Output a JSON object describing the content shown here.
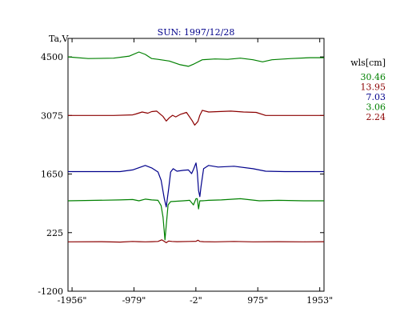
{
  "chart_data": {
    "type": "line",
    "title": "SUN: 1997/12/28",
    "ylabel": "Ta,V",
    "legend_title": "wls[cm]",
    "legend_placement": "right",
    "x_ticks": [
      "-1956\"",
      "-979\"",
      "-2\"",
      "975\"",
      "1953\""
    ],
    "x_tick_values": [
      -1956,
      -979,
      -2,
      975,
      1953
    ],
    "y_ticks": [
      "4500",
      "3075",
      "1650",
      "225",
      "-1200"
    ],
    "y_tick_values": [
      4500,
      3075,
      1650,
      225,
      -1200
    ],
    "xlim": [
      -2020,
      2020
    ],
    "ylim": [
      -1200,
      4950
    ],
    "grid": false,
    "series": [
      {
        "name": "30.46",
        "color": "#008000",
        "x": [
          -2020,
          -1700,
          -1300,
          -1050,
          -900,
          -800,
          -700,
          -600,
          -420,
          -250,
          -120,
          -30,
          100,
          300,
          500,
          700,
          900,
          1050,
          1200,
          1500,
          1800,
          2020
        ],
        "y": [
          4500,
          4460,
          4470,
          4520,
          4620,
          4560,
          4460,
          4440,
          4400,
          4310,
          4270,
          4330,
          4430,
          4450,
          4440,
          4470,
          4430,
          4380,
          4430,
          4460,
          4480,
          4480
        ]
      },
      {
        "name": "13.95",
        "color": "#8b0000",
        "x": [
          -2020,
          -1300,
          -1000,
          -950,
          -850,
          -760,
          -700,
          -620,
          -520,
          -470,
          -420,
          -370,
          -320,
          -250,
          -150,
          -60,
          -20,
          30,
          60,
          100,
          200,
          350,
          550,
          750,
          950,
          1100,
          1400,
          1700,
          2020
        ],
        "y": [
          3075,
          3075,
          3090,
          3110,
          3160,
          3130,
          3170,
          3180,
          3050,
          2940,
          3020,
          3080,
          3040,
          3100,
          3150,
          2950,
          2840,
          2930,
          3080,
          3200,
          3160,
          3170,
          3180,
          3160,
          3150,
          3075,
          3075,
          3075,
          3075
        ]
      },
      {
        "name": "7.03",
        "color": "#00008b",
        "x": [
          -2020,
          -1200,
          -1000,
          -800,
          -700,
          -600,
          -550,
          -500,
          -470,
          -430,
          -400,
          -360,
          -300,
          -200,
          -120,
          -70,
          -40,
          0,
          20,
          40,
          60,
          80,
          120,
          200,
          350,
          600,
          900,
          1100,
          1400,
          1700,
          2020
        ],
        "y": [
          1710,
          1710,
          1750,
          1860,
          1800,
          1700,
          1500,
          1050,
          850,
          1300,
          1700,
          1780,
          1720,
          1740,
          1750,
          1660,
          1760,
          1920,
          1700,
          1250,
          1100,
          1350,
          1780,
          1860,
          1820,
          1840,
          1780,
          1720,
          1710,
          1710,
          1710
        ]
      },
      {
        "name": "3.06",
        "color": "#008000",
        "x": [
          -2020,
          -1200,
          -1000,
          -900,
          -800,
          -700,
          -600,
          -550,
          -520,
          -490,
          -470,
          -440,
          -400,
          -300,
          -200,
          -100,
          -40,
          0,
          20,
          40,
          60,
          100,
          200,
          400,
          700,
          1000,
          1300,
          1700,
          2020
        ],
        "y": [
          1000,
          1020,
          1030,
          1000,
          1040,
          1020,
          1010,
          880,
          600,
          50,
          400,
          900,
          980,
          990,
          1000,
          1010,
          900,
          1050,
          1050,
          800,
          1000,
          1000,
          1010,
          1020,
          1050,
          1000,
          1010,
          1000,
          1000
        ]
      },
      {
        "name": "2.24",
        "color": "#8b0000",
        "x": [
          -2020,
          -1500,
          -1200,
          -1000,
          -900,
          -800,
          -700,
          -600,
          -540,
          -500,
          -470,
          -430,
          -380,
          -300,
          -100,
          0,
          30,
          60,
          120,
          300,
          600,
          900,
          1300,
          1700,
          2020
        ],
        "y": [
          0,
          5,
          -5,
          10,
          5,
          0,
          5,
          10,
          50,
          10,
          -20,
          20,
          10,
          5,
          10,
          15,
          40,
          10,
          5,
          0,
          10,
          0,
          5,
          0,
          5
        ]
      }
    ]
  }
}
